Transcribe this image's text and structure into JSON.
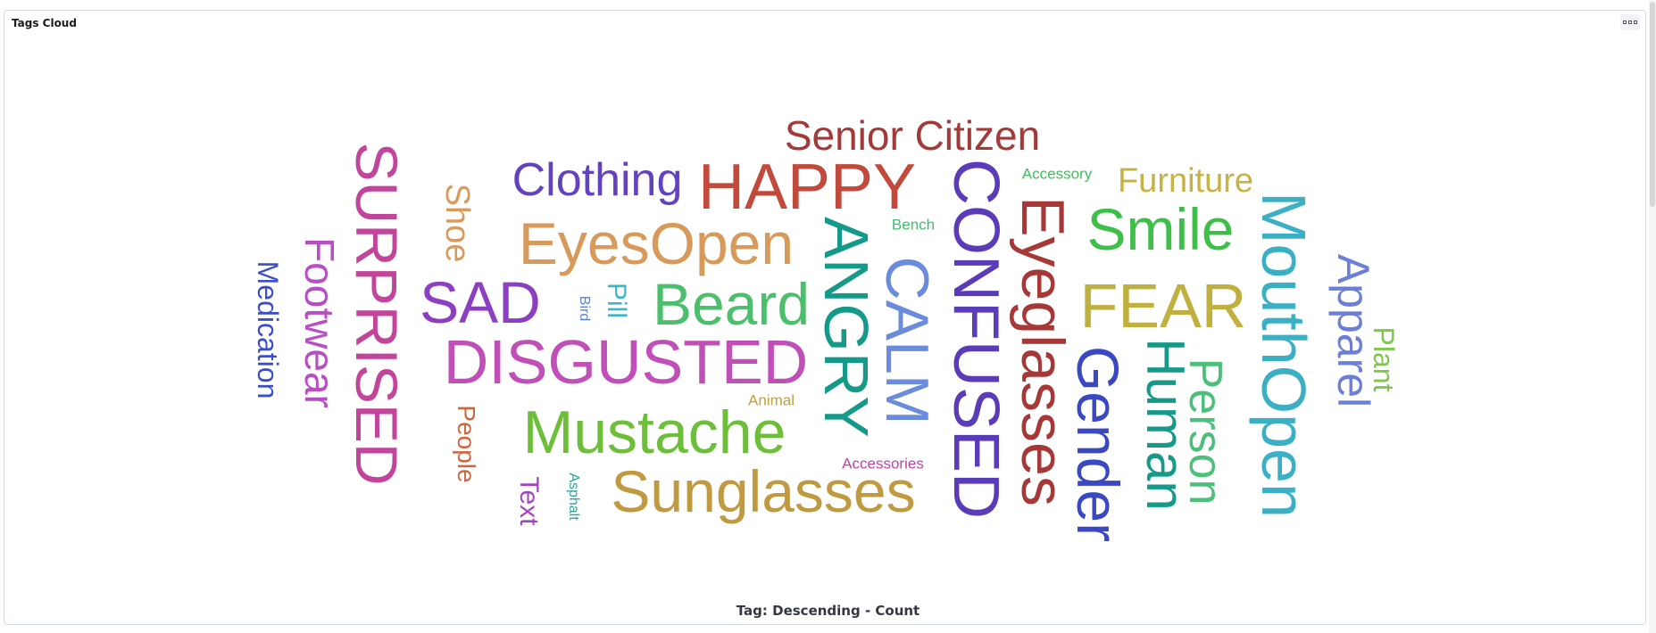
{
  "panel": {
    "title": "Tags Cloud"
  },
  "legend": "Tag: Descending - Count",
  "tags": [
    {
      "text": "SURPRISED",
      "color": "#c2449b"
    },
    {
      "text": "Footwear",
      "color": "#b84ec4"
    },
    {
      "text": "Medication",
      "color": "#3b4dc8"
    },
    {
      "text": "Shoe",
      "color": "#d99a5b"
    },
    {
      "text": "SAD",
      "color": "#8c3fc0"
    },
    {
      "text": "Clothing",
      "color": "#6242c0"
    },
    {
      "text": "HAPPY",
      "color": "#c24a3c"
    },
    {
      "text": "Senior Citizen",
      "color": "#a33a3a"
    },
    {
      "text": "EyesOpen",
      "color": "#d89a5a"
    },
    {
      "text": "Bird",
      "color": "#5a7fd8"
    },
    {
      "text": "Pill",
      "color": "#3bb5c9"
    },
    {
      "text": "Beard",
      "color": "#4cbf6c"
    },
    {
      "text": "DISGUSTED",
      "color": "#c04fb8"
    },
    {
      "text": "People",
      "color": "#d0653d"
    },
    {
      "text": "Animal",
      "color": "#c0a040"
    },
    {
      "text": "Mustache",
      "color": "#6dbf3a"
    },
    {
      "text": "Text",
      "color": "#a542c6"
    },
    {
      "text": "Asphalt",
      "color": "#2ba59a"
    },
    {
      "text": "Sunglasses",
      "color": "#c09a40"
    },
    {
      "text": "Accessories",
      "color": "#c042a8"
    },
    {
      "text": "ANGRY",
      "color": "#159a8a"
    },
    {
      "text": "Bench",
      "color": "#3fbf6c"
    },
    {
      "text": "CALM",
      "color": "#6b8cdc"
    },
    {
      "text": "CONFUSED",
      "color": "#5a3cb8"
    },
    {
      "text": "Accessory",
      "color": "#3fbf5a"
    },
    {
      "text": "Eyeglasses",
      "color": "#a63838"
    },
    {
      "text": "Furniture",
      "color": "#c7b244"
    },
    {
      "text": "Smile",
      "color": "#3fbf4a"
    },
    {
      "text": "FEAR",
      "color": "#c0b040"
    },
    {
      "text": "Gender",
      "color": "#3a48c4"
    },
    {
      "text": "Human",
      "color": "#159a8a"
    },
    {
      "text": "Person",
      "color": "#4cbf7a"
    },
    {
      "text": "MouthOpen",
      "color": "#3bb0c4"
    },
    {
      "text": "Apparel",
      "color": "#6b7fd8"
    },
    {
      "text": "Plant",
      "color": "#7cc94a"
    }
  ]
}
